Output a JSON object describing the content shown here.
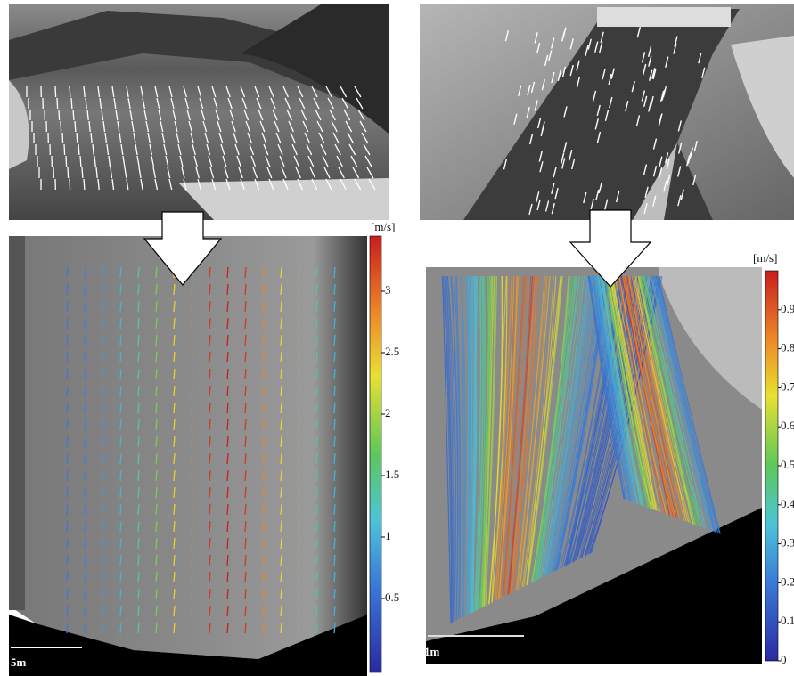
{
  "panels": {
    "river": {
      "colorbar": {
        "unit": "[m/s]",
        "ticks": [
          0.5,
          1,
          1.5,
          2,
          2.5,
          3
        ]
      },
      "scale_label": "5m"
    },
    "lab": {
      "colorbar": {
        "unit": "[m/s]",
        "ticks": [
          0,
          0.1,
          0.2,
          0.3,
          0.4,
          0.5,
          0.6,
          0.7,
          0.8,
          0.9
        ]
      },
      "scale_label": "1m"
    }
  }
}
